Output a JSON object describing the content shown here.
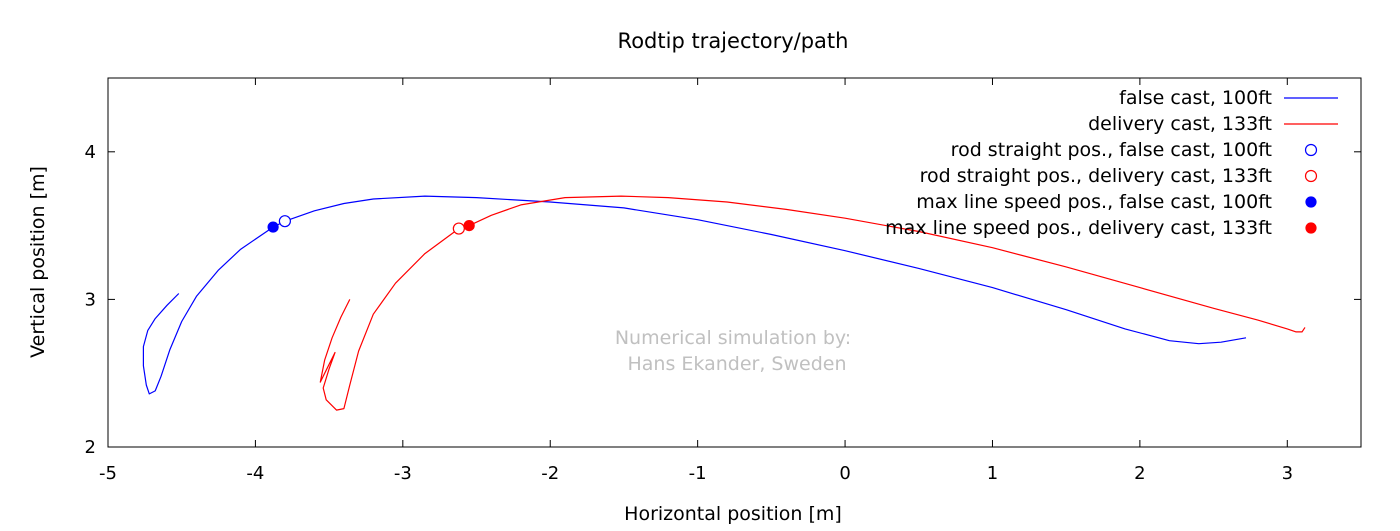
{
  "chart_data": {
    "type": "line",
    "title": "Rodtip trajectory/path",
    "xlabel": "Horizontal position [m]",
    "ylabel": "Vertical position [m]",
    "xlim": [
      -5,
      3.5
    ],
    "ylim": [
      2,
      4.5
    ],
    "x_ticks": [
      -5,
      -4,
      -3,
      -2,
      -1,
      0,
      1,
      2,
      3
    ],
    "y_ticks": [
      2,
      3,
      4
    ],
    "grid": false,
    "legend_position": "top-right",
    "annotation": [
      "Numerical simulation by:",
      "Hans Ekander, Sweden"
    ],
    "colors": {
      "false_cast": "#0000ff",
      "delivery_cast": "#ff0000",
      "annotation": "#c0c0c0"
    },
    "series": [
      {
        "name": "false cast, 100ft",
        "color": "#0000ff",
        "points": [
          [
            -4.52,
            3.04
          ],
          [
            -4.6,
            2.96
          ],
          [
            -4.68,
            2.87
          ],
          [
            -4.73,
            2.79
          ],
          [
            -4.76,
            2.68
          ],
          [
            -4.76,
            2.55
          ],
          [
            -4.74,
            2.42
          ],
          [
            -4.72,
            2.36
          ],
          [
            -4.68,
            2.38
          ],
          [
            -4.64,
            2.48
          ],
          [
            -4.58,
            2.66
          ],
          [
            -4.5,
            2.85
          ],
          [
            -4.4,
            3.02
          ],
          [
            -4.25,
            3.2
          ],
          [
            -4.1,
            3.34
          ],
          [
            -3.88,
            3.49
          ],
          [
            -3.8,
            3.53
          ],
          [
            -3.6,
            3.6
          ],
          [
            -3.4,
            3.65
          ],
          [
            -3.2,
            3.68
          ],
          [
            -2.85,
            3.7
          ],
          [
            -2.5,
            3.69
          ],
          [
            -2.0,
            3.66
          ],
          [
            -1.5,
            3.62
          ],
          [
            -1.0,
            3.54
          ],
          [
            -0.5,
            3.44
          ],
          [
            0.0,
            3.33
          ],
          [
            0.5,
            3.21
          ],
          [
            1.0,
            3.08
          ],
          [
            1.5,
            2.93
          ],
          [
            1.9,
            2.8
          ],
          [
            2.2,
            2.72
          ],
          [
            2.4,
            2.7
          ],
          [
            2.55,
            2.71
          ],
          [
            2.72,
            2.74
          ]
        ]
      },
      {
        "name": "delivery cast, 133ft",
        "color": "#ff0000",
        "points": [
          [
            -3.36,
            3.0
          ],
          [
            -3.42,
            2.88
          ],
          [
            -3.48,
            2.74
          ],
          [
            -3.53,
            2.59
          ],
          [
            -3.56,
            2.44
          ],
          [
            -3.52,
            2.52
          ],
          [
            -3.46,
            2.64
          ],
          [
            -3.5,
            2.53
          ],
          [
            -3.54,
            2.4
          ],
          [
            -3.52,
            2.32
          ],
          [
            -3.45,
            2.25
          ],
          [
            -3.4,
            2.26
          ],
          [
            -3.36,
            2.42
          ],
          [
            -3.3,
            2.65
          ],
          [
            -3.2,
            2.9
          ],
          [
            -3.05,
            3.11
          ],
          [
            -2.85,
            3.31
          ],
          [
            -2.62,
            3.48
          ],
          [
            -2.55,
            3.5
          ],
          [
            -2.4,
            3.57
          ],
          [
            -2.2,
            3.64
          ],
          [
            -1.9,
            3.69
          ],
          [
            -1.52,
            3.7
          ],
          [
            -1.2,
            3.69
          ],
          [
            -0.8,
            3.66
          ],
          [
            -0.4,
            3.61
          ],
          [
            0.0,
            3.55
          ],
          [
            0.5,
            3.46
          ],
          [
            1.0,
            3.35
          ],
          [
            1.5,
            3.22
          ],
          [
            2.0,
            3.08
          ],
          [
            2.5,
            2.94
          ],
          [
            2.8,
            2.86
          ],
          [
            3.0,
            2.8
          ],
          [
            3.06,
            2.78
          ],
          [
            3.1,
            2.78
          ],
          [
            3.12,
            2.81
          ]
        ]
      },
      {
        "name": "rod straight pos., false cast, 100ft",
        "color": "#0000ff",
        "marker": "open-circle",
        "points": [
          [
            -3.8,
            3.53
          ]
        ]
      },
      {
        "name": "rod straight pos., delivery cast, 133ft",
        "color": "#ff0000",
        "marker": "open-circle",
        "points": [
          [
            -2.62,
            3.48
          ]
        ]
      },
      {
        "name": "max line speed pos., false cast, 100ft",
        "color": "#0000ff",
        "marker": "filled-circle",
        "points": [
          [
            -3.88,
            3.49
          ]
        ]
      },
      {
        "name": "max line speed pos., delivery cast, 133ft",
        "color": "#ff0000",
        "marker": "filled-circle",
        "points": [
          [
            -2.55,
            3.5
          ]
        ]
      }
    ]
  }
}
